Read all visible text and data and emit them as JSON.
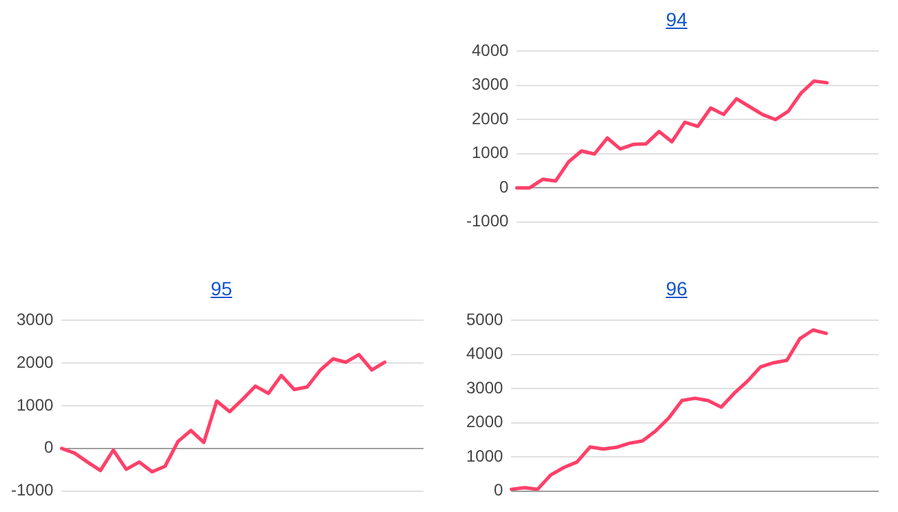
{
  "chart_data": [
    {
      "type": "line",
      "title": "94",
      "categories": [
        null,
        null,
        null,
        null,
        null,
        null,
        null,
        null,
        null,
        null,
        null,
        null,
        null,
        null,
        null,
        null,
        null,
        null,
        null,
        null,
        null,
        null,
        null,
        null,
        null,
        null,
        null,
        null,
        null
      ],
      "series": [
        {
          "color": "#ff4069",
          "values": [
            0,
            0,
            250,
            200,
            760,
            1080,
            990,
            1460,
            1140,
            1270,
            1290,
            1650,
            1350,
            1920,
            1800,
            2340,
            2150,
            2610,
            2380,
            2150,
            2000,
            2240,
            2780,
            3130,
            3080,
            null,
            null,
            null,
            null
          ]
        }
      ],
      "ylim": [
        -1000,
        4000
      ],
      "yticks": [
        -1000,
        0,
        1000,
        2000,
        3000,
        4000
      ],
      "grid": "y",
      "tick_labels": "y",
      "marker": "none",
      "line_style": "solid"
    },
    {
      "type": "line",
      "title": "95",
      "categories": [
        null,
        null,
        null,
        null,
        null,
        null,
        null,
        null,
        null,
        null,
        null,
        null,
        null,
        null,
        null,
        null,
        null,
        null,
        null,
        null,
        null,
        null,
        null,
        null,
        null,
        null,
        null,
        null,
        null
      ],
      "series": [
        {
          "color": "#ff4069",
          "values": [
            0,
            -110,
            -320,
            -520,
            -40,
            -490,
            -320,
            -550,
            -420,
            160,
            420,
            140,
            1110,
            860,
            1150,
            1460,
            1290,
            1710,
            1380,
            1440,
            1830,
            2100,
            2020,
            2200,
            1840,
            2020,
            null,
            null,
            null
          ]
        }
      ],
      "ylim": [
        -1000,
        3000
      ],
      "yticks": [
        -1000,
        0,
        1000,
        2000,
        3000
      ],
      "grid": "y",
      "tick_labels": "y",
      "marker": "none",
      "line_style": "solid"
    },
    {
      "type": "line",
      "title": "96",
      "categories": [
        null,
        null,
        null,
        null,
        null,
        null,
        null,
        null,
        null,
        null,
        null,
        null,
        null,
        null,
        null,
        null,
        null,
        null,
        null,
        null,
        null,
        null,
        null,
        null,
        null,
        null,
        null,
        null,
        null
      ],
      "series": [
        {
          "color": "#ff4069",
          "values": [
            50,
            100,
            50,
            470,
            690,
            850,
            1290,
            1230,
            1280,
            1400,
            1470,
            1760,
            2140,
            2650,
            2720,
            2650,
            2460,
            2870,
            3220,
            3640,
            3760,
            3830,
            4470,
            4720,
            4620,
            null,
            null,
            null,
            null
          ]
        }
      ],
      "ylim": [
        0,
        5000
      ],
      "yticks": [
        0,
        1000,
        2000,
        3000,
        4000,
        5000
      ],
      "grid": "y",
      "tick_labels": "y",
      "marker": "none",
      "line_style": "solid"
    }
  ]
}
